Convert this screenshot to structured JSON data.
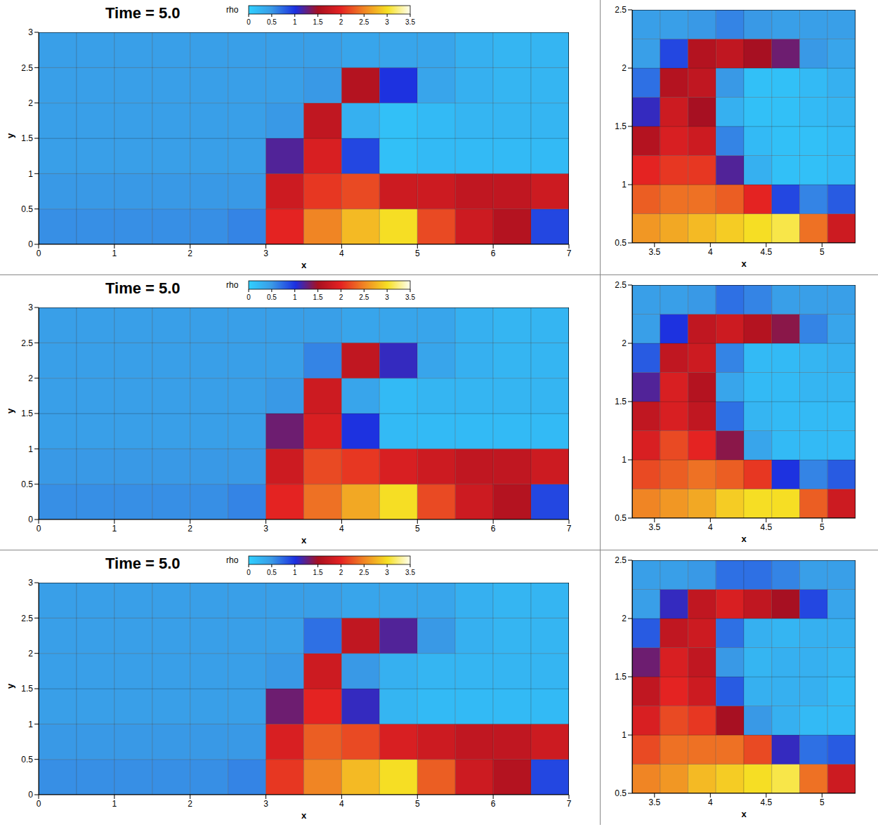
{
  "chart_data": [
    {
      "type": "heatmap",
      "title": "Time = 5.0",
      "x_label": "x",
      "y_label": "y",
      "xlim": [
        0,
        7
      ],
      "ylim": [
        0,
        3
      ],
      "xticks": [
        0,
        1,
        2,
        3,
        4,
        5,
        6,
        7
      ],
      "yticks": [
        0,
        0.5,
        1,
        1.5,
        2,
        2.5,
        3
      ],
      "legend": "top",
      "colorbar": {
        "label": "rho",
        "range": [
          0,
          3.5
        ],
        "ticks": [
          0,
          0.5,
          1,
          1.5,
          2,
          2.5,
          3,
          3.5
        ]
      },
      "cells": [
        [
          0.55,
          0.55,
          0.55,
          0.55,
          0.55,
          0.6,
          2.0,
          2.5,
          2.8,
          3.0,
          2.2,
          1.8,
          1.6,
          0.9
        ],
        [
          0.5,
          0.5,
          0.5,
          0.5,
          0.5,
          0.5,
          1.8,
          2.1,
          2.2,
          1.8,
          1.8,
          1.7,
          1.7,
          1.8
        ],
        [
          0.45,
          0.45,
          0.45,
          0.45,
          0.45,
          0.45,
          1.2,
          1.9,
          0.9,
          0.15,
          0.2,
          0.2,
          0.2,
          0.2
        ],
        [
          0.45,
          0.45,
          0.45,
          0.45,
          0.45,
          0.45,
          0.5,
          1.7,
          0.3,
          0.15,
          0.2,
          0.25,
          0.25,
          0.25
        ],
        [
          0.45,
          0.45,
          0.45,
          0.45,
          0.45,
          0.45,
          0.45,
          0.5,
          1.6,
          1.0,
          0.4,
          0.3,
          0.25,
          0.25
        ],
        [
          0.45,
          0.45,
          0.45,
          0.45,
          0.45,
          0.45,
          0.45,
          0.45,
          0.4,
          0.4,
          0.4,
          0.3,
          0.25,
          0.25
        ]
      ]
    },
    {
      "type": "heatmap",
      "x_label": "x",
      "xlim": [
        3.3,
        5.3
      ],
      "ylim": [
        0.5,
        2.5
      ],
      "xticks": [
        3.5,
        4,
        4.5,
        5
      ],
      "yticks": [
        0.5,
        1,
        1.5,
        2,
        2.5
      ],
      "cells": [
        [
          2.6,
          2.7,
          2.8,
          2.9,
          3.0,
          3.1,
          2.4,
          1.8
        ],
        [
          2.3,
          2.4,
          2.4,
          2.3,
          2.0,
          0.9,
          0.6,
          0.8
        ],
        [
          2.0,
          2.1,
          2.1,
          1.2,
          0.3,
          0.15,
          0.15,
          0.2
        ],
        [
          1.6,
          1.9,
          1.8,
          0.6,
          0.2,
          0.15,
          0.15,
          0.2
        ],
        [
          1.1,
          1.8,
          1.5,
          0.3,
          0.15,
          0.15,
          0.2,
          0.25
        ],
        [
          0.7,
          1.6,
          1.7,
          0.5,
          0.15,
          0.15,
          0.2,
          0.3
        ],
        [
          0.45,
          0.9,
          1.6,
          1.7,
          1.5,
          1.3,
          0.5,
          0.4
        ],
        [
          0.45,
          0.45,
          0.5,
          0.6,
          0.5,
          0.45,
          0.45,
          0.45
        ]
      ]
    },
    {
      "type": "heatmap",
      "title": "Time = 5.0",
      "x_label": "x",
      "y_label": "y",
      "xlim": [
        0,
        7
      ],
      "ylim": [
        0,
        3
      ],
      "xticks": [
        0,
        1,
        2,
        3,
        4,
        5,
        6,
        7
      ],
      "yticks": [
        0,
        0.5,
        1,
        1.5,
        2,
        2.5,
        3
      ],
      "legend": "top",
      "colorbar": {
        "label": "rho",
        "range": [
          0,
          3.5
        ],
        "ticks": [
          0,
          0.5,
          1,
          1.5,
          2,
          2.5,
          3,
          3.5
        ]
      },
      "cells": [
        [
          0.55,
          0.55,
          0.55,
          0.55,
          0.55,
          0.6,
          2.0,
          2.4,
          2.7,
          3.0,
          2.2,
          1.8,
          1.6,
          0.9
        ],
        [
          0.5,
          0.5,
          0.5,
          0.5,
          0.5,
          0.5,
          1.8,
          2.2,
          2.1,
          1.9,
          1.8,
          1.7,
          1.7,
          1.8
        ],
        [
          0.45,
          0.45,
          0.45,
          0.45,
          0.45,
          0.45,
          1.3,
          1.9,
          1.0,
          0.2,
          0.2,
          0.2,
          0.2,
          0.2
        ],
        [
          0.45,
          0.45,
          0.45,
          0.45,
          0.45,
          0.45,
          0.5,
          1.8,
          0.4,
          0.2,
          0.25,
          0.25,
          0.25,
          0.25
        ],
        [
          0.45,
          0.45,
          0.45,
          0.45,
          0.45,
          0.45,
          0.45,
          0.6,
          1.7,
          1.1,
          0.4,
          0.3,
          0.25,
          0.25
        ],
        [
          0.45,
          0.45,
          0.45,
          0.45,
          0.45,
          0.45,
          0.45,
          0.45,
          0.4,
          0.4,
          0.4,
          0.3,
          0.25,
          0.25
        ]
      ]
    },
    {
      "type": "heatmap",
      "x_label": "x",
      "xlim": [
        3.3,
        5.3
      ],
      "ylim": [
        0.5,
        2.5
      ],
      "xticks": [
        3.5,
        4,
        4.5,
        5
      ],
      "yticks": [
        0.5,
        1,
        1.5,
        2,
        2.5
      ],
      "cells": [
        [
          2.5,
          2.6,
          2.7,
          2.9,
          3.0,
          3.0,
          2.3,
          1.8
        ],
        [
          2.2,
          2.3,
          2.4,
          2.3,
          2.1,
          1.0,
          0.6,
          0.8
        ],
        [
          1.9,
          2.2,
          2.0,
          1.4,
          0.4,
          0.2,
          0.2,
          0.2
        ],
        [
          1.7,
          1.9,
          1.7,
          0.7,
          0.25,
          0.2,
          0.2,
          0.2
        ],
        [
          1.2,
          1.9,
          1.6,
          0.4,
          0.2,
          0.2,
          0.25,
          0.25
        ],
        [
          0.8,
          1.7,
          1.8,
          0.6,
          0.2,
          0.2,
          0.25,
          0.3
        ],
        [
          0.45,
          1.0,
          1.7,
          1.8,
          1.6,
          1.4,
          0.6,
          0.4
        ],
        [
          0.45,
          0.45,
          0.5,
          0.7,
          0.6,
          0.45,
          0.45,
          0.45
        ]
      ]
    },
    {
      "type": "heatmap",
      "title": "Time = 5.0",
      "x_label": "x",
      "y_label": "y",
      "xlim": [
        0,
        7
      ],
      "ylim": [
        0,
        3
      ],
      "xticks": [
        0,
        1,
        2,
        3,
        4,
        5,
        6,
        7
      ],
      "yticks": [
        0,
        0.5,
        1,
        1.5,
        2,
        2.5,
        3
      ],
      "legend": "top",
      "colorbar": {
        "label": "rho",
        "range": [
          0,
          3.5
        ],
        "ticks": [
          0,
          0.5,
          1,
          1.5,
          2,
          2.5,
          3,
          3.5
        ]
      },
      "cells": [
        [
          0.55,
          0.55,
          0.55,
          0.55,
          0.55,
          0.6,
          2.1,
          2.5,
          2.8,
          3.0,
          2.3,
          1.8,
          1.6,
          0.9
        ],
        [
          0.5,
          0.5,
          0.5,
          0.5,
          0.5,
          0.5,
          1.9,
          2.3,
          2.2,
          1.9,
          1.8,
          1.7,
          1.7,
          1.8
        ],
        [
          0.45,
          0.45,
          0.45,
          0.45,
          0.45,
          0.45,
          1.3,
          2.0,
          1.1,
          0.25,
          0.2,
          0.2,
          0.2,
          0.2
        ],
        [
          0.45,
          0.45,
          0.45,
          0.45,
          0.45,
          0.45,
          0.5,
          1.8,
          0.5,
          0.3,
          0.25,
          0.25,
          0.25,
          0.25
        ],
        [
          0.45,
          0.45,
          0.45,
          0.45,
          0.45,
          0.45,
          0.45,
          0.7,
          1.7,
          1.2,
          0.5,
          0.3,
          0.25,
          0.25
        ],
        [
          0.45,
          0.45,
          0.45,
          0.45,
          0.45,
          0.45,
          0.45,
          0.45,
          0.4,
          0.4,
          0.4,
          0.3,
          0.25,
          0.25
        ]
      ]
    },
    {
      "type": "heatmap",
      "x_label": "x",
      "xlim": [
        3.3,
        5.3
      ],
      "ylim": [
        0.5,
        2.5
      ],
      "xticks": [
        3.5,
        4,
        4.5,
        5
      ],
      "yticks": [
        0.5,
        1,
        1.5,
        2,
        2.5
      ],
      "cells": [
        [
          2.5,
          2.6,
          2.8,
          2.9,
          3.0,
          3.1,
          2.4,
          1.8
        ],
        [
          2.2,
          2.4,
          2.4,
          2.4,
          2.2,
          1.1,
          0.7,
          0.8
        ],
        [
          1.9,
          2.2,
          2.1,
          1.5,
          0.5,
          0.3,
          0.2,
          0.2
        ],
        [
          1.7,
          2.0,
          1.8,
          0.8,
          0.3,
          0.3,
          0.3,
          0.2
        ],
        [
          1.3,
          1.9,
          1.7,
          0.5,
          0.25,
          0.3,
          0.3,
          0.25
        ],
        [
          0.8,
          1.7,
          1.8,
          0.7,
          0.3,
          0.25,
          0.3,
          0.3
        ],
        [
          0.45,
          1.1,
          1.7,
          1.9,
          1.7,
          1.5,
          0.9,
          0.4
        ],
        [
          0.45,
          0.45,
          0.5,
          0.7,
          0.7,
          0.6,
          0.45,
          0.45
        ]
      ]
    }
  ]
}
